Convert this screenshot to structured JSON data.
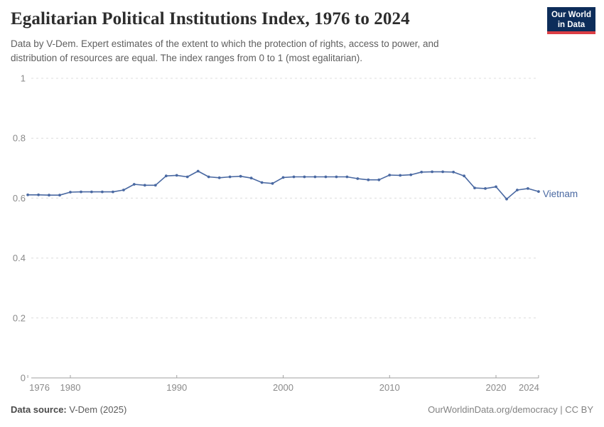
{
  "header": {
    "title": "Egalitarian Political Institutions Index, 1976 to 2024",
    "subtitle_line1": "Data by V-Dem. Expert estimates of the extent to which the protection of rights, access to power, and",
    "subtitle_line2": "distribution of resources are equal. The index ranges from 0 to 1 (most egalitarian).",
    "logo": {
      "line1": "Our World",
      "line2": "in Data",
      "bg_color": "#0d2d5a",
      "accent_color": "#dc3e45"
    }
  },
  "footer": {
    "source_label": "Data source:",
    "source_value": " V-Dem (2025)",
    "right_text": "OurWorldinData.org/democracy | CC BY"
  },
  "chart_data": {
    "type": "line",
    "title": "Egalitarian Political Institutions Index, 1976 to 2024",
    "xlabel": "",
    "ylabel": "",
    "xlim": [
      1976,
      2024
    ],
    "ylim": [
      0,
      1
    ],
    "grid": "horizontal-dashed",
    "legend_position": "end-of-line-label",
    "x_ticks": [
      {
        "v": 1976,
        "label": "1976"
      },
      {
        "v": 1980,
        "label": "1980"
      },
      {
        "v": 1990,
        "label": "1990"
      },
      {
        "v": 2000,
        "label": "2000"
      },
      {
        "v": 2010,
        "label": "2010"
      },
      {
        "v": 2020,
        "label": "2020"
      },
      {
        "v": 2024,
        "label": "2024"
      }
    ],
    "y_ticks": [
      {
        "v": 0,
        "label": "0"
      },
      {
        "v": 0.2,
        "label": "0.2"
      },
      {
        "v": 0.4,
        "label": "0.4"
      },
      {
        "v": 0.6,
        "label": "0.6"
      },
      {
        "v": 0.8,
        "label": "0.8"
      },
      {
        "v": 1,
        "label": "1"
      }
    ],
    "series": [
      {
        "name": "Vietnam",
        "color": "#4a69a2",
        "x": [
          1976,
          1977,
          1978,
          1979,
          1980,
          1981,
          1982,
          1983,
          1984,
          1985,
          1986,
          1987,
          1988,
          1989,
          1990,
          1991,
          1992,
          1993,
          1994,
          1995,
          1996,
          1997,
          1998,
          1999,
          2000,
          2001,
          2002,
          2003,
          2004,
          2005,
          2006,
          2007,
          2008,
          2009,
          2010,
          2011,
          2012,
          2013,
          2014,
          2015,
          2016,
          2017,
          2018,
          2019,
          2020,
          2021,
          2022,
          2023,
          2024
        ],
        "values": [
          0.611,
          0.611,
          0.61,
          0.61,
          0.62,
          0.621,
          0.621,
          0.621,
          0.621,
          0.627,
          0.646,
          0.643,
          0.643,
          0.674,
          0.676,
          0.671,
          0.69,
          0.671,
          0.668,
          0.671,
          0.673,
          0.667,
          0.652,
          0.649,
          0.669,
          0.671,
          0.671,
          0.671,
          0.671,
          0.671,
          0.671,
          0.665,
          0.661,
          0.661,
          0.677,
          0.676,
          0.678,
          0.687,
          0.688,
          0.688,
          0.687,
          0.674,
          0.634,
          0.632,
          0.638,
          0.597,
          0.627,
          0.632,
          0.622
        ]
      }
    ],
    "colors": {
      "grid": "#dcdcdc",
      "axis": "#a1a1a1",
      "tick_label": "#8a8a8a"
    }
  }
}
